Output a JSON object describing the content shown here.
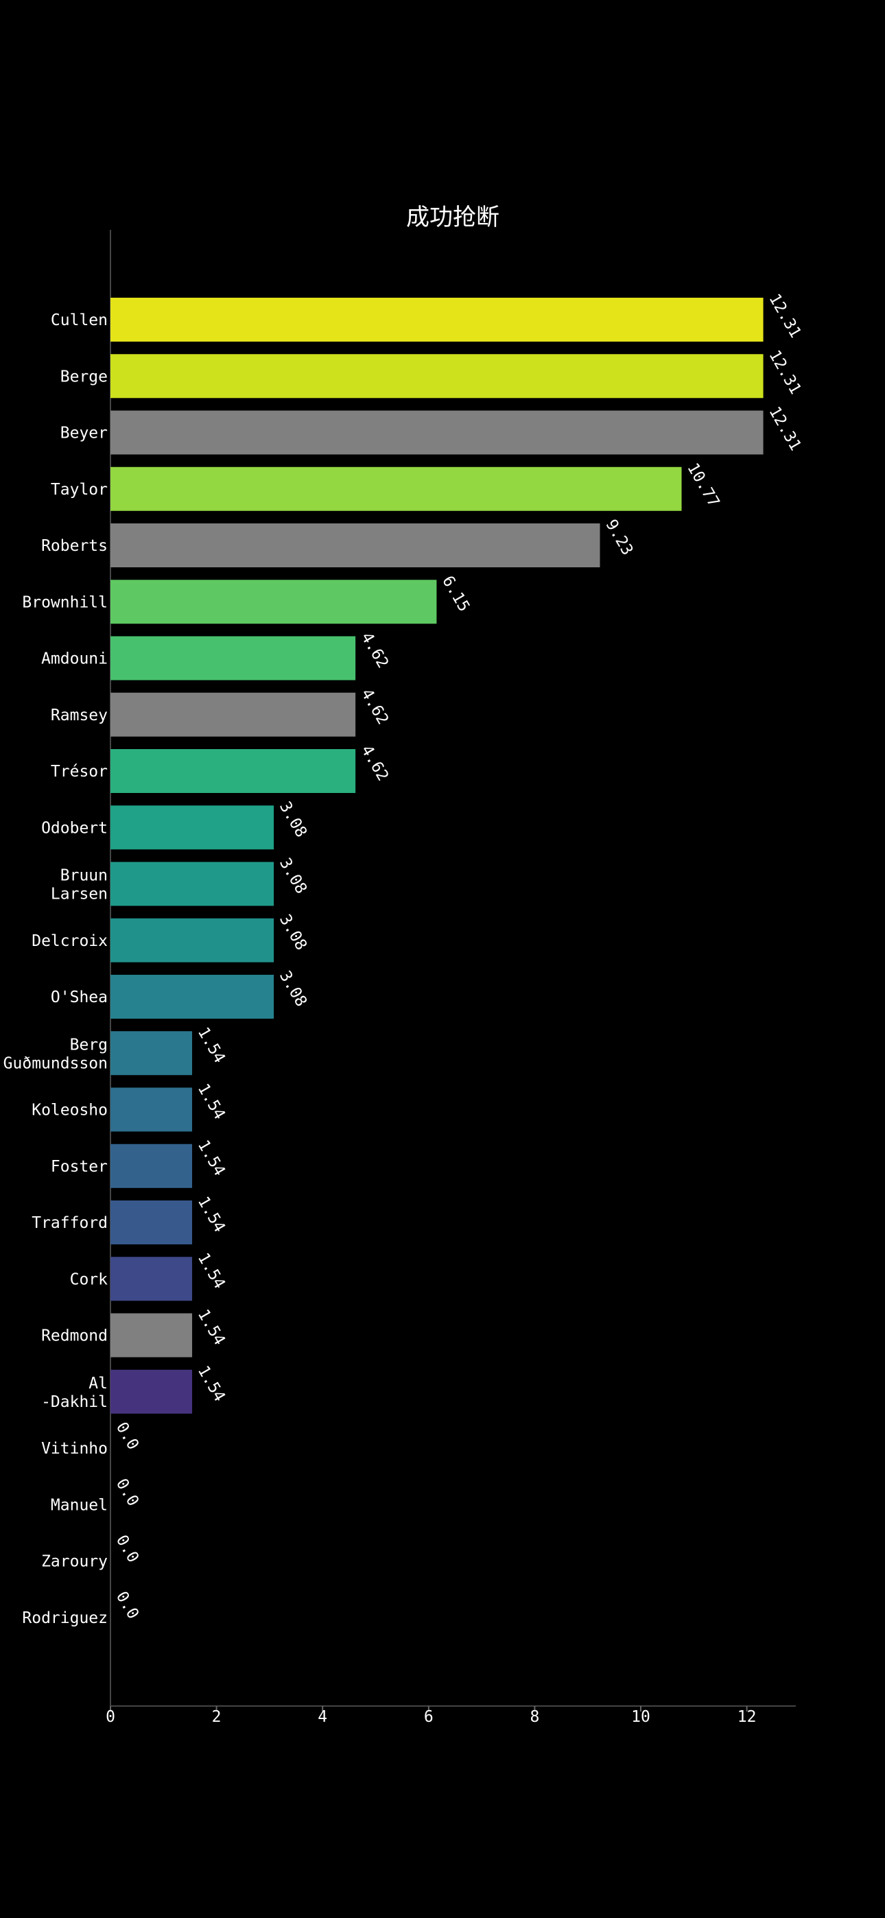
{
  "chart_data": {
    "type": "bar",
    "orientation": "horizontal",
    "title": "成功抢断",
    "xlabel": "",
    "ylabel": "",
    "xlim": [
      0,
      13
    ],
    "xticks": [
      0,
      2,
      4,
      6,
      8,
      10,
      12
    ],
    "grid": false,
    "categories": [
      "Cullen",
      "Berge",
      "Beyer",
      "Taylor",
      "Roberts",
      "Brownhill",
      "Amdouni",
      "Ramsey",
      "Trésor",
      "Odobert",
      "Bruun\nLarsen",
      "Delcroix",
      "O'Shea",
      "Berg\nGuðmundsson",
      "Koleosho",
      "Foster",
      "Trafford",
      "Cork",
      "Redmond",
      "Al\n-Dakhil",
      "Vitinho",
      "Manuel",
      "Zaroury",
      "Rodriguez"
    ],
    "values": [
      12.31,
      12.31,
      12.31,
      10.77,
      9.23,
      6.15,
      4.62,
      4.62,
      4.62,
      3.08,
      3.08,
      3.08,
      3.08,
      1.54,
      1.54,
      1.54,
      1.54,
      1.54,
      1.54,
      1.54,
      0.0,
      0.0,
      0.0,
      0.0
    ],
    "value_labels": [
      "12.31",
      "12.31",
      "12.31",
      "10.77",
      "9.23",
      "6.15",
      "4.62",
      "4.62",
      "4.62",
      "3.08",
      "3.08",
      "3.08",
      "3.08",
      "1.54",
      "1.54",
      "1.54",
      "1.54",
      "1.54",
      "1.54",
      "1.54",
      "0.0",
      "0.0",
      "0.0",
      "0.0"
    ],
    "colors": [
      "#e5e419",
      "#cde11d",
      "#808080",
      "#93d741",
      "#808080",
      "#5ec962",
      "#48c16e",
      "#808080",
      "#2ab07f",
      "#1fa287",
      "#1f9a8a",
      "#21918c",
      "#26828e",
      "#2a788e",
      "#2e6e8e",
      "#33638d",
      "#38598c",
      "#3e4989",
      "#808080",
      "#46337e",
      "#808080",
      "#808080",
      "#808080",
      "#808080"
    ]
  }
}
